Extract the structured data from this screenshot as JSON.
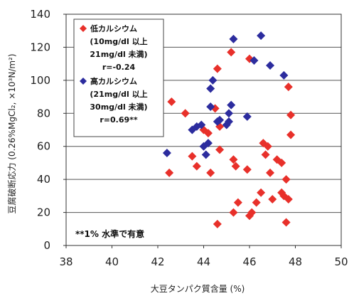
{
  "chart_data": {
    "type": "scatter",
    "xlabel": "大豆タンパク質含量 (%)",
    "ylabel": "豆腐破断応力 (0.26%MgCl₂, ×10³N/m²)",
    "xlim": [
      38,
      50
    ],
    "ylim": [
      0,
      140
    ],
    "xticks": [
      "38",
      "40",
      "42",
      "44",
      "46",
      "48",
      "50"
    ],
    "yticks": [
      "0",
      "20",
      "40",
      "60",
      "80",
      "100",
      "120",
      "140"
    ],
    "grid": "horizontal",
    "legend_position": "top-left",
    "series": [
      {
        "name": "低カルシウム",
        "legend_lines": [
          "低カルシウム",
          "(10mg/dl 以上",
          "21mg/dl 未満)",
          "r=-0.24"
        ],
        "color": "#e8302a",
        "marker": "diamond",
        "points": [
          [
            42.6,
            87
          ],
          [
            42.5,
            44
          ],
          [
            43.2,
            80
          ],
          [
            43.5,
            54
          ],
          [
            43.7,
            48
          ],
          [
            44.0,
            70
          ],
          [
            44.2,
            68
          ],
          [
            44.3,
            44
          ],
          [
            44.5,
            83
          ],
          [
            44.7,
            72
          ],
          [
            44.6,
            107
          ],
          [
            44.7,
            58
          ],
          [
            45.2,
            117
          ],
          [
            45.3,
            52
          ],
          [
            45.4,
            48
          ],
          [
            45.3,
            20
          ],
          [
            45.5,
            26
          ],
          [
            45.9,
            46
          ],
          [
            46.0,
            18
          ],
          [
            46.1,
            20
          ],
          [
            46.3,
            26
          ],
          [
            46.5,
            32
          ],
          [
            46.6,
            62
          ],
          [
            46.7,
            55
          ],
          [
            46.8,
            60
          ],
          [
            46.9,
            44
          ],
          [
            47.0,
            28
          ],
          [
            47.2,
            52
          ],
          [
            47.4,
            50
          ],
          [
            47.4,
            32
          ],
          [
            47.5,
            30
          ],
          [
            47.6,
            40
          ],
          [
            47.7,
            96
          ],
          [
            47.8,
            79
          ],
          [
            47.8,
            67
          ],
          [
            47.6,
            14
          ],
          [
            44.6,
            13
          ],
          [
            46.0,
            113
          ],
          [
            47.7,
            28
          ]
        ]
      },
      {
        "name": "高カルシウム",
        "legend_lines": [
          "高カルシウム",
          "(21mg/dl 以上",
          "30mg/dl 未満)",
          "r=0.69**"
        ],
        "color": "#2c2c9e",
        "marker": "diamond",
        "points": [
          [
            42.4,
            56
          ],
          [
            43.5,
            70
          ],
          [
            43.7,
            72
          ],
          [
            43.9,
            73
          ],
          [
            44.0,
            60
          ],
          [
            44.1,
            55
          ],
          [
            44.2,
            62
          ],
          [
            44.3,
            95
          ],
          [
            44.3,
            84
          ],
          [
            44.4,
            100
          ],
          [
            44.6,
            75
          ],
          [
            44.7,
            76
          ],
          [
            45.0,
            73
          ],
          [
            45.1,
            80
          ],
          [
            45.2,
            85
          ],
          [
            45.3,
            125
          ],
          [
            45.9,
            78
          ],
          [
            46.2,
            112
          ],
          [
            46.5,
            127
          ],
          [
            46.9,
            109
          ],
          [
            47.5,
            103
          ],
          [
            45.1,
            75
          ]
        ]
      }
    ],
    "annotation": "**1% 水準で有意"
  }
}
